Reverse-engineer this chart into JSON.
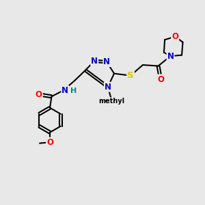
{
  "background_color": "#e8e8e8",
  "atom_colors": {
    "N": "#0000cc",
    "O": "#ff0000",
    "S": "#cccc00",
    "H": "#008888"
  },
  "bond_color": "#000000",
  "bond_width": 1.5,
  "figsize": [
    3.0,
    3.0
  ],
  "dpi": 100,
  "xlim": [
    0,
    10
  ],
  "ylim": [
    0,
    10
  ]
}
